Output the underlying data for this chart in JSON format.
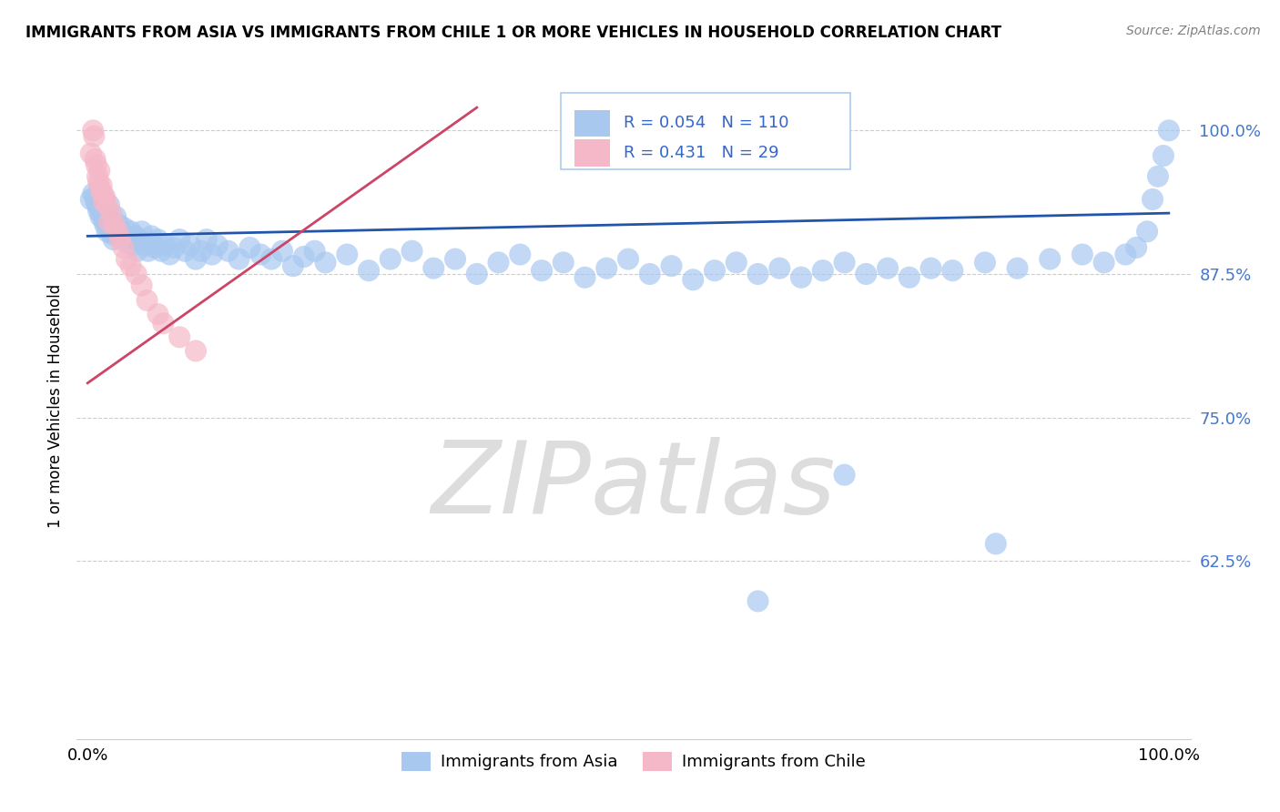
{
  "title": "IMMIGRANTS FROM ASIA VS IMMIGRANTS FROM CHILE 1 OR MORE VEHICLES IN HOUSEHOLD CORRELATION CHART",
  "source": "Source: ZipAtlas.com",
  "ylabel": "1 or more Vehicles in Household",
  "legend_asia": "Immigrants from Asia",
  "legend_chile": "Immigrants from Chile",
  "R_asia": 0.054,
  "N_asia": 110,
  "R_chile": 0.431,
  "N_chile": 29,
  "blue_color": "#A8C8F0",
  "pink_color": "#F5B8C8",
  "blue_line_color": "#2255AA",
  "pink_line_color": "#CC4466",
  "watermark": "ZIPatlas",
  "watermark_color": "#DDDDDD",
  "ytick_values": [
    1.0,
    0.875,
    0.75,
    0.625
  ],
  "ytick_labels": [
    "100.0%",
    "87.5%",
    "75.0%",
    "62.5%"
  ],
  "xlim": [
    -0.01,
    1.02
  ],
  "ylim": [
    0.47,
    1.05
  ],
  "asia_x": [
    0.003,
    0.005,
    0.007,
    0.008,
    0.009,
    0.01,
    0.011,
    0.012,
    0.012,
    0.013,
    0.014,
    0.015,
    0.015,
    0.016,
    0.017,
    0.018,
    0.018,
    0.019,
    0.02,
    0.021,
    0.022,
    0.023,
    0.024,
    0.025,
    0.026,
    0.027,
    0.028,
    0.029,
    0.03,
    0.032,
    0.034,
    0.036,
    0.038,
    0.04,
    0.042,
    0.044,
    0.046,
    0.048,
    0.05,
    0.053,
    0.056,
    0.059,
    0.062,
    0.065,
    0.068,
    0.072,
    0.076,
    0.08,
    0.085,
    0.09,
    0.095,
    0.1,
    0.105,
    0.11,
    0.115,
    0.12,
    0.13,
    0.14,
    0.15,
    0.16,
    0.17,
    0.18,
    0.19,
    0.2,
    0.21,
    0.22,
    0.24,
    0.26,
    0.28,
    0.3,
    0.32,
    0.34,
    0.36,
    0.38,
    0.4,
    0.42,
    0.44,
    0.46,
    0.48,
    0.5,
    0.52,
    0.54,
    0.56,
    0.58,
    0.6,
    0.62,
    0.64,
    0.66,
    0.68,
    0.7,
    0.72,
    0.74,
    0.76,
    0.78,
    0.8,
    0.83,
    0.86,
    0.89,
    0.92,
    0.94,
    0.96,
    0.97,
    0.98,
    0.985,
    0.99,
    0.995,
    1.0,
    0.62,
    0.84,
    0.7
  ],
  "asia_y": [
    0.94,
    0.945,
    0.942,
    0.938,
    0.935,
    0.93,
    0.948,
    0.925,
    0.932,
    0.928,
    0.936,
    0.922,
    0.94,
    0.918,
    0.93,
    0.912,
    0.926,
    0.92,
    0.935,
    0.915,
    0.91,
    0.92,
    0.905,
    0.915,
    0.925,
    0.91,
    0.908,
    0.918,
    0.912,
    0.906,
    0.915,
    0.908,
    0.902,
    0.912,
    0.9,
    0.908,
    0.895,
    0.905,
    0.912,
    0.9,
    0.895,
    0.908,
    0.898,
    0.905,
    0.895,
    0.9,
    0.892,
    0.898,
    0.905,
    0.895,
    0.9,
    0.888,
    0.895,
    0.905,
    0.892,
    0.9,
    0.895,
    0.888,
    0.898,
    0.892,
    0.888,
    0.895,
    0.882,
    0.89,
    0.895,
    0.885,
    0.892,
    0.878,
    0.888,
    0.895,
    0.88,
    0.888,
    0.875,
    0.885,
    0.892,
    0.878,
    0.885,
    0.872,
    0.88,
    0.888,
    0.875,
    0.882,
    0.87,
    0.878,
    0.885,
    0.875,
    0.88,
    0.872,
    0.878,
    0.885,
    0.875,
    0.88,
    0.872,
    0.88,
    0.878,
    0.885,
    0.88,
    0.888,
    0.892,
    0.885,
    0.892,
    0.898,
    0.912,
    0.94,
    0.96,
    0.978,
    1.0,
    0.59,
    0.64,
    0.7
  ],
  "chile_x": [
    0.003,
    0.005,
    0.006,
    0.007,
    0.008,
    0.009,
    0.01,
    0.011,
    0.012,
    0.013,
    0.014,
    0.015,
    0.016,
    0.018,
    0.02,
    0.022,
    0.025,
    0.028,
    0.03,
    0.033,
    0.036,
    0.04,
    0.045,
    0.05,
    0.055,
    0.065,
    0.07,
    0.085,
    0.1
  ],
  "chile_y": [
    0.98,
    1.0,
    0.995,
    0.975,
    0.97,
    0.96,
    0.955,
    0.965,
    0.948,
    0.952,
    0.945,
    0.938,
    0.942,
    0.935,
    0.92,
    0.928,
    0.918,
    0.912,
    0.905,
    0.898,
    0.888,
    0.882,
    0.875,
    0.865,
    0.852,
    0.84,
    0.832,
    0.82,
    0.808
  ]
}
